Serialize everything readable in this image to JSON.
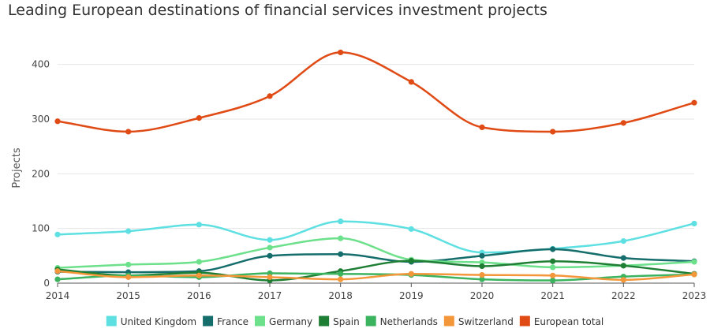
{
  "chart_data": {
    "type": "line",
    "title": "Leading European destinations of financial services investment projects",
    "xlabel": "",
    "ylabel": "Projects",
    "x": [
      2014,
      2015,
      2016,
      2017,
      2018,
      2019,
      2020,
      2021,
      2022,
      2023
    ],
    "ylim": [
      0,
      450
    ],
    "yticks": [
      0,
      100,
      200,
      300,
      400
    ],
    "grid": true,
    "legend_position": "bottom",
    "series": [
      {
        "name": "United Kingdom",
        "color": "#5ee0e2",
        "values": [
          89,
          95,
          107,
          79,
          113,
          99,
          56,
          63,
          77,
          109
        ]
      },
      {
        "name": "France",
        "color": "#166e6c",
        "values": [
          21,
          20,
          22,
          50,
          53,
          39,
          50,
          62,
          46,
          40
        ]
      },
      {
        "name": "Germany",
        "color": "#6ce08a",
        "values": [
          28,
          34,
          39,
          65,
          82,
          43,
          38,
          29,
          32,
          39
        ]
      },
      {
        "name": "Spain",
        "color": "#1e7e34",
        "values": [
          25,
          14,
          19,
          5,
          22,
          41,
          31,
          40,
          32,
          17
        ]
      },
      {
        "name": "Netherlands",
        "color": "#3bb35f",
        "values": [
          7,
          14,
          11,
          18,
          17,
          15,
          7,
          5,
          12,
          16
        ]
      },
      {
        "name": "Switzerland",
        "color": "#f3973a",
        "values": [
          22,
          11,
          14,
          11,
          7,
          17,
          15,
          14,
          6,
          16
        ]
      },
      {
        "name": "European total",
        "color": "#e04a14",
        "values": [
          296,
          277,
          302,
          342,
          422,
          368,
          285,
          277,
          293,
          330
        ]
      }
    ]
  }
}
